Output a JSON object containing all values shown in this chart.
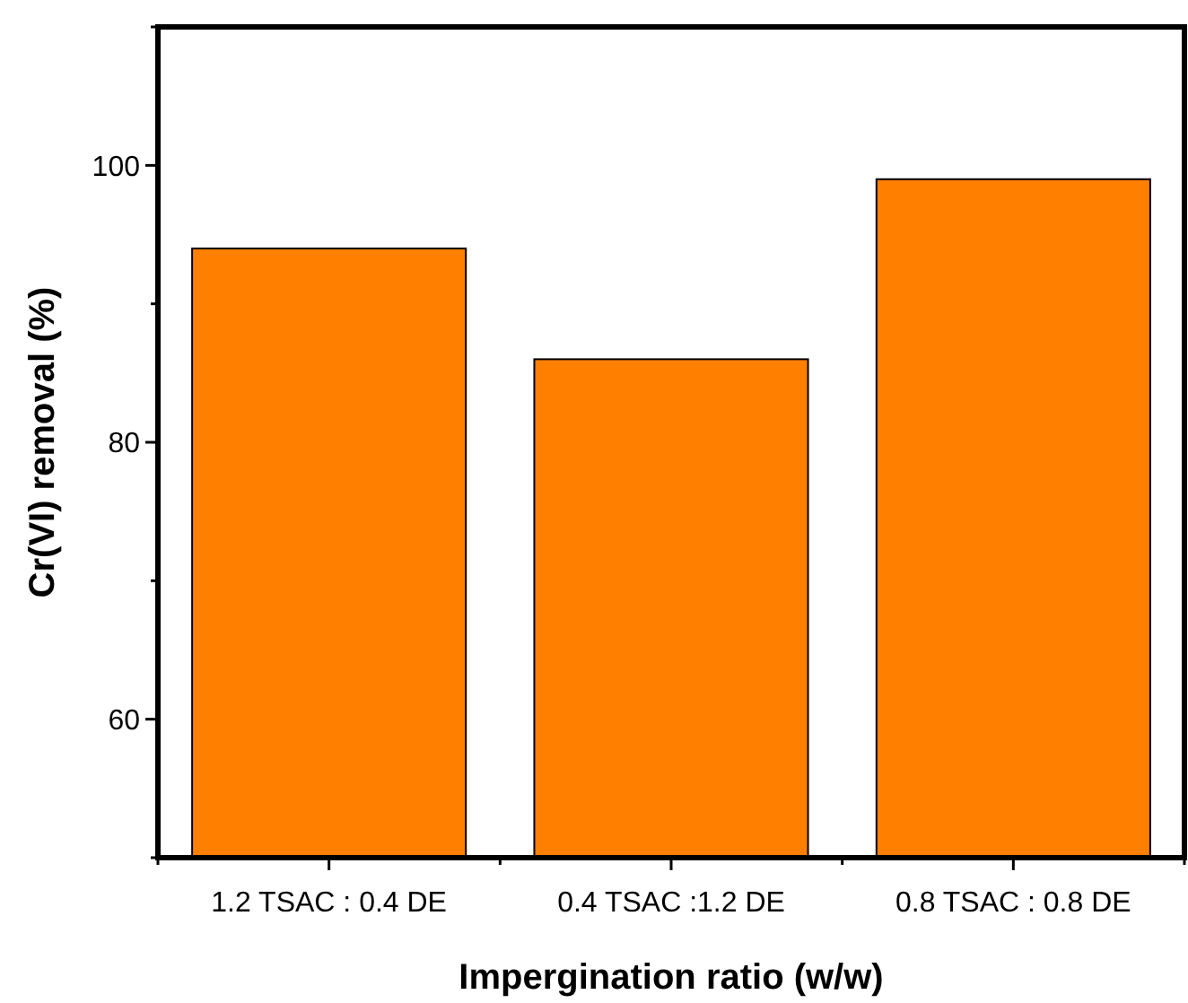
{
  "chart_data": {
    "type": "bar",
    "xlabel": "Impergination ratio (w/w)",
    "ylabel": "Cr(VI) removal (%)",
    "categories": [
      "1.2 TSAC : 0.4 DE",
      "0.4 TSAC :1.2 DE",
      "0.8 TSAC : 0.8 DE"
    ],
    "values": [
      94,
      86,
      99
    ],
    "color": "#ff8000",
    "ylim": [
      50,
      110
    ],
    "yticks": [
      {
        "value": 50,
        "label": null
      },
      60,
      {
        "value": 70,
        "label": null
      },
      80,
      {
        "value": 90,
        "label": null
      },
      100,
      {
        "value": 110,
        "label": null
      }
    ],
    "grid": false
  }
}
